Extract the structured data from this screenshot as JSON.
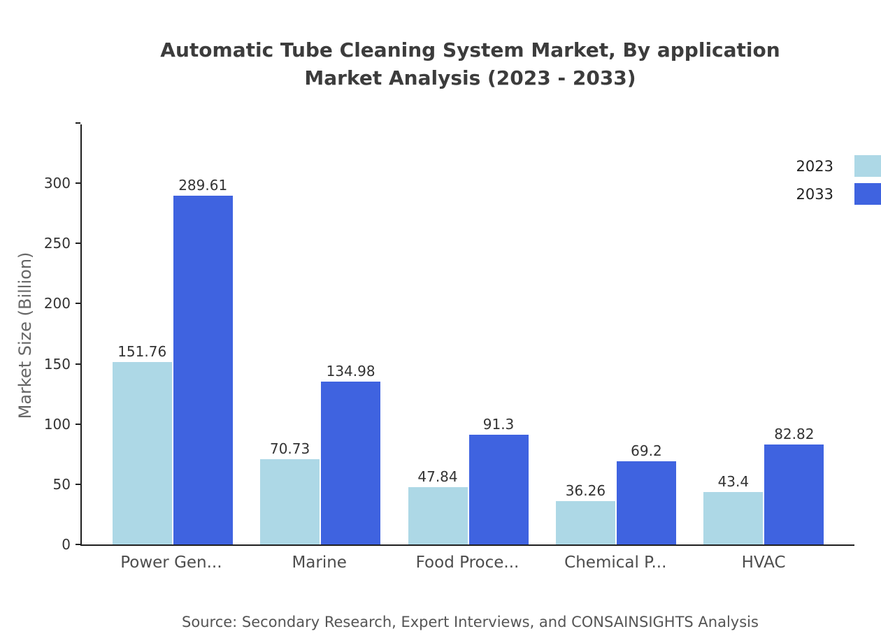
{
  "title": {
    "line1": "Automatic Tube Cleaning System Market, By application",
    "line2": "Market Analysis (2023 - 2033)"
  },
  "y_axis": {
    "label": "Market Size (Billion)"
  },
  "source": "Source: Secondary Research, Expert Interviews, and CONSAINSIGHTS Analysis",
  "chart_data": {
    "type": "bar",
    "title": "Automatic Tube Cleaning System Market, By application Market Analysis (2023 - 2033)",
    "categories": [
      "Power Gen...",
      "Marine",
      "Food Proce...",
      "Chemical P...",
      "HVAC"
    ],
    "series": [
      {
        "name": "2023",
        "color": "#add8e6",
        "values": [
          151.76,
          70.73,
          47.84,
          36.26,
          43.4
        ]
      },
      {
        "name": "2033",
        "color": "#3f63e0",
        "values": [
          289.61,
          134.98,
          91.3,
          69.2,
          82.82
        ]
      }
    ],
    "xlabel": "",
    "ylabel": "Market Size (Billion)",
    "ylim": [
      0,
      350
    ],
    "yticks": [
      0,
      50,
      100,
      150,
      200,
      250,
      300
    ],
    "grid": false,
    "legend_position": "top-right",
    "bar_value_labels": true
  }
}
